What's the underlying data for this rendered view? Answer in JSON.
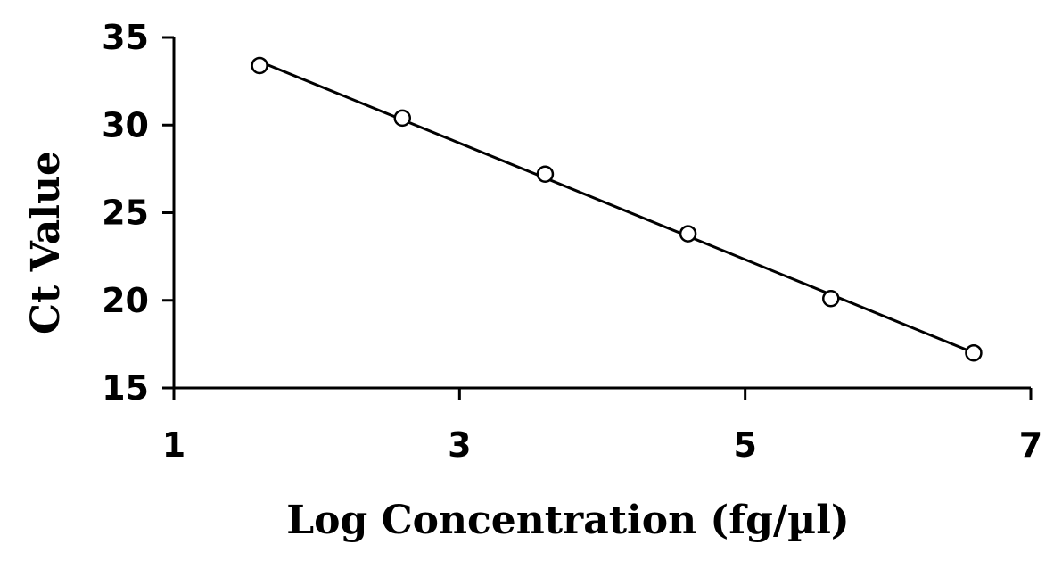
{
  "chart_data": {
    "type": "scatter",
    "title": "",
    "xlabel": "Log Concentration (fg/µl)",
    "ylabel": "Ct Value",
    "xlim": [
      1,
      7
    ],
    "ylim": [
      15,
      35
    ],
    "xticks": [
      1,
      3,
      5,
      7
    ],
    "yticks": [
      15,
      20,
      25,
      30,
      35
    ],
    "grid": false,
    "legend": "none",
    "trendline": "linear",
    "marker": "open-circle",
    "series": [
      {
        "x": [
          1.6,
          2.6,
          3.6,
          4.6,
          5.6,
          6.6
        ],
        "y": [
          33.4,
          30.4,
          27.2,
          23.8,
          20.1,
          17.0
        ]
      }
    ]
  }
}
